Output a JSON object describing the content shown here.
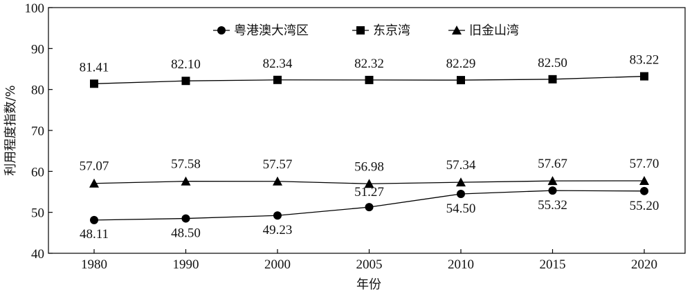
{
  "chart_data": {
    "type": "line",
    "title": "",
    "xlabel": "年份",
    "ylabel": "利用程度指数/%",
    "categories": [
      "1980",
      "1990",
      "2000",
      "2005",
      "2010",
      "2015",
      "2020"
    ],
    "ylim": [
      40,
      100
    ],
    "yticks": [
      "40",
      "50",
      "60",
      "70",
      "80",
      "90",
      "100"
    ],
    "grid": false,
    "legend_position": "top",
    "series": [
      {
        "name": "粤港澳大湾区",
        "marker": "circle",
        "values": [
          48.11,
          48.5,
          49.23,
          51.27,
          54.5,
          55.32,
          55.2
        ],
        "labels": [
          "48.11",
          "48.50",
          "49.23",
          "51.27",
          "54.50",
          "55.32",
          "55.20"
        ]
      },
      {
        "name": "东京湾",
        "marker": "square",
        "values": [
          81.41,
          82.1,
          82.34,
          82.32,
          82.29,
          82.5,
          83.22
        ],
        "labels": [
          "81.41",
          "82.10",
          "82.34",
          "82.32",
          "82.29",
          "82.50",
          "83.22"
        ]
      },
      {
        "name": "旧金山湾",
        "marker": "triangle",
        "values": [
          57.07,
          57.58,
          57.57,
          56.98,
          57.34,
          57.67,
          57.7
        ],
        "labels": [
          "57.07",
          "57.58",
          "57.57",
          "56.98",
          "57.34",
          "57.67",
          "57.70"
        ]
      }
    ]
  }
}
